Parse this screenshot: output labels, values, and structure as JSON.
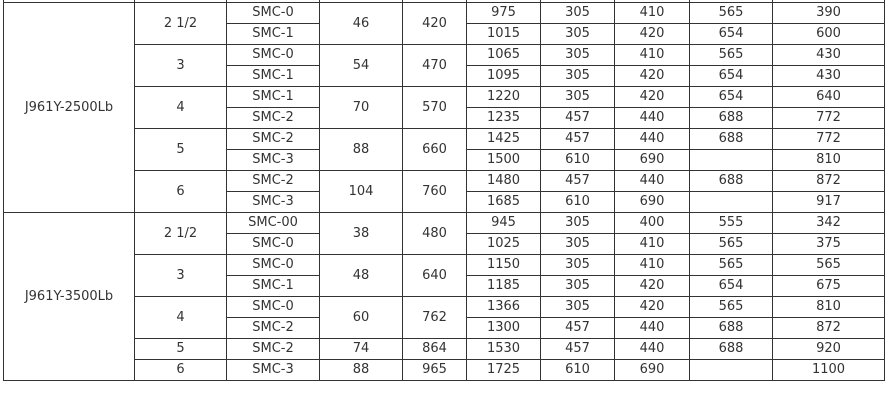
{
  "table": {
    "groups": [
      {
        "model": "J961Y-2500Lb",
        "sizes": [
          {
            "size": "2 1/2",
            "weight": "46",
            "dim": "420",
            "rows": [
              {
                "smc": "SMC-0",
                "vals": [
                  "975",
                  "305",
                  "410",
                  "565",
                  "390"
                ]
              },
              {
                "smc": "SMC-1",
                "vals": [
                  "1015",
                  "305",
                  "420",
                  "654",
                  "600"
                ]
              }
            ]
          },
          {
            "size": "3",
            "weight": "54",
            "dim": "470",
            "rows": [
              {
                "smc": "SMC-0",
                "vals": [
                  "1065",
                  "305",
                  "410",
                  "565",
                  "430"
                ]
              },
              {
                "smc": "SMC-1",
                "vals": [
                  "1095",
                  "305",
                  "420",
                  "654",
                  "430"
                ]
              }
            ]
          },
          {
            "size": "4",
            "weight": "70",
            "dim": "570",
            "rows": [
              {
                "smc": "SMC-1",
                "vals": [
                  "1220",
                  "305",
                  "420",
                  "654",
                  "640"
                ]
              },
              {
                "smc": "SMC-2",
                "vals": [
                  "1235",
                  "457",
                  "440",
                  "688",
                  "772"
                ]
              }
            ]
          },
          {
            "size": "5",
            "weight": "88",
            "dim": "660",
            "rows": [
              {
                "smc": "SMC-2",
                "vals": [
                  "1425",
                  "457",
                  "440",
                  "688",
                  "772"
                ]
              },
              {
                "smc": "SMC-3",
                "vals": [
                  "1500",
                  "610",
                  "690",
                  "",
                  "810"
                ]
              }
            ]
          },
          {
            "size": "6",
            "weight": "104",
            "dim": "760",
            "rows": [
              {
                "smc": "SMC-2",
                "vals": [
                  "1480",
                  "457",
                  "440",
                  "688",
                  "872"
                ]
              },
              {
                "smc": "SMC-3",
                "vals": [
                  "1685",
                  "610",
                  "690",
                  "",
                  "917"
                ]
              }
            ]
          }
        ]
      },
      {
        "model": "J961Y-3500Lb",
        "sizes": [
          {
            "size": "2 1/2",
            "weight": "38",
            "dim": "480",
            "rows": [
              {
                "smc": "SMC-00",
                "vals": [
                  "945",
                  "305",
                  "400",
                  "555",
                  "342"
                ]
              },
              {
                "smc": "SMC-0",
                "vals": [
                  "1025",
                  "305",
                  "410",
                  "565",
                  "375"
                ]
              }
            ]
          },
          {
            "size": "3",
            "weight": "48",
            "dim": "640",
            "rows": [
              {
                "smc": "SMC-0",
                "vals": [
                  "1150",
                  "305",
                  "410",
                  "565",
                  "565"
                ]
              },
              {
                "smc": "SMC-1",
                "vals": [
                  "1185",
                  "305",
                  "420",
                  "654",
                  "675"
                ]
              }
            ]
          },
          {
            "size": "4",
            "weight": "60",
            "dim": "762",
            "rows": [
              {
                "smc": "SMC-0",
                "vals": [
                  "1366",
                  "305",
                  "420",
                  "565",
                  "810"
                ]
              },
              {
                "smc": "SMC-2",
                "vals": [
                  "1300",
                  "457",
                  "440",
                  "688",
                  "872"
                ]
              }
            ]
          },
          {
            "size": "5",
            "weight": "74",
            "dim": "864",
            "rows": [
              {
                "smc": "SMC-2",
                "vals": [
                  "1530",
                  "457",
                  "440",
                  "688",
                  "920"
                ]
              }
            ]
          },
          {
            "size": "6",
            "weight": "88",
            "dim": "965",
            "rows": [
              {
                "smc": "SMC-3",
                "vals": [
                  "1725",
                  "610",
                  "690",
                  "",
                  "1100"
                ]
              }
            ]
          }
        ]
      }
    ]
  }
}
